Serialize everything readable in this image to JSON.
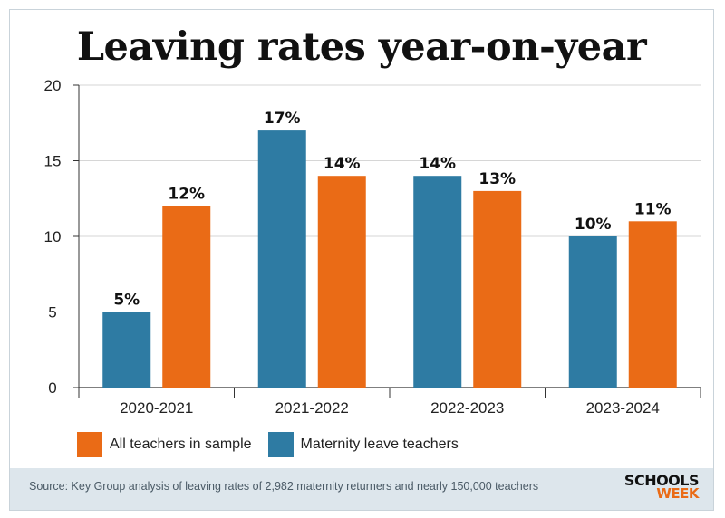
{
  "colors": {
    "all_teachers": "#ea6b16",
    "maternity": "#2e7ba3"
  },
  "chart_data": {
    "type": "bar",
    "title": "Leaving rates year-on-year",
    "categories": [
      "2020-2021",
      "2021-2022",
      "2022-2023",
      "2023-2024"
    ],
    "series": [
      {
        "name": "Maternity leave teachers",
        "values": [
          5,
          17,
          14,
          10
        ],
        "labels": [
          "5%",
          "17%",
          "14%",
          "10%"
        ]
      },
      {
        "name": "All teachers in sample",
        "values": [
          12,
          14,
          13,
          11
        ],
        "labels": [
          "12%",
          "14%",
          "13%",
          "11%"
        ]
      }
    ],
    "ylim": [
      0,
      20
    ],
    "yticks": [
      "0",
      "5",
      "10",
      "15",
      "20"
    ],
    "ytick_values": [
      0,
      5,
      10,
      15,
      20
    ],
    "grid": true,
    "xlabel": "",
    "ylabel": ""
  },
  "legend": {
    "all_label": "All teachers in sample",
    "maternity_label": "Maternity leave teachers"
  },
  "footer": {
    "source": "Source: Key Group analysis of leaving rates of 2,982 maternity returners and nearly 150,000 teachers",
    "logo_line1": "SCHOOLS",
    "logo_line2": "WEEK"
  }
}
